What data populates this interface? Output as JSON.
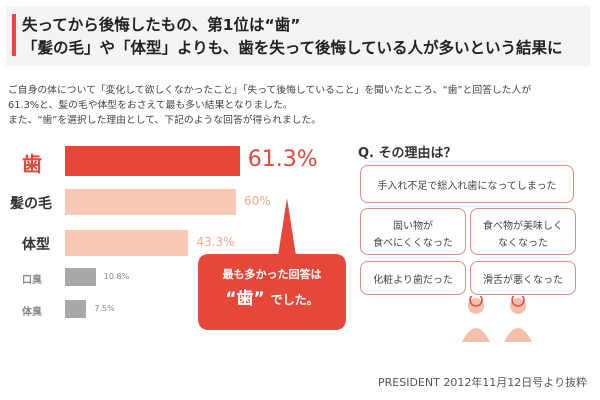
{
  "title": {
    "line1": "失ってから後悔したもの、第1位は“歯”",
    "line2": "「髪の毛」や「体型」よりも、歯を失って後悔している人が多いという結果に"
  },
  "intro": {
    "line1": "ご自身の体について「変化して欲しくなかったこと」「失って後悔していること」を聞いたところ、“歯”と回答した人が",
    "line2": "61.3%と、髪の毛や体型をおさえて最も多い結果となりました。",
    "line3": "また、“歯”を選択した理由として、下記のような回答が得られました。"
  },
  "chart_data": {
    "type": "bar",
    "categories": [
      "歯",
      "髪の毛",
      "体型",
      "口臭",
      "体臭"
    ],
    "values": [
      61.3,
      60,
      43.3,
      10.8,
      7.5
    ],
    "value_labels": [
      "61.3%",
      "60%",
      "43.3%",
      "10.8%",
      "7.5%"
    ],
    "colors": [
      "#e5483b",
      "#f8c9b7",
      "#f8c9b7",
      "#a9a9a9",
      "#a9a9a9"
    ],
    "orientation": "horizontal"
  },
  "callout": {
    "line1": "最も多かった回答は",
    "emph": "“歯”",
    "tail": "でした。"
  },
  "question": {
    "title": "Q. その理由は？",
    "reasons": [
      "手入れ不足で総入れ歯になってしまった",
      "固い物が",
      "食べにくくなった",
      "食べ物が美味しく",
      "なくなった",
      "化粧より歯だった",
      "滑舌が悪くなった"
    ]
  },
  "credit": "PRESIDENT 2012年11月12日号より抜粋"
}
